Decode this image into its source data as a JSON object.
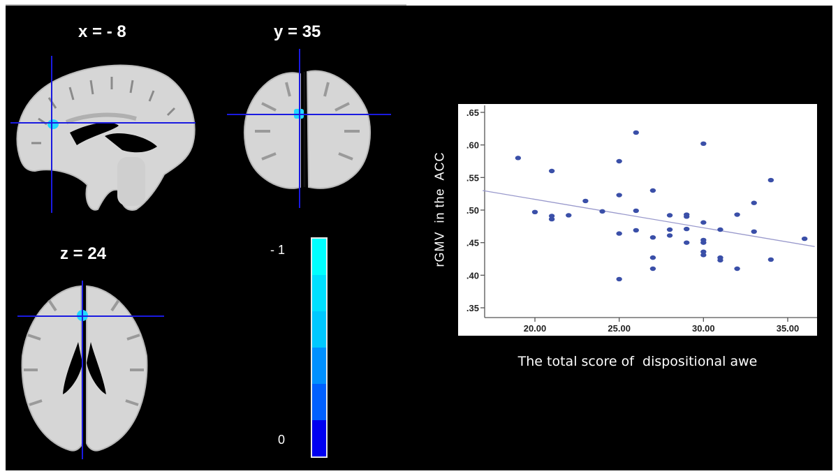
{
  "figure": {
    "panels": {
      "sagittal": {
        "label": "x = - 8"
      },
      "coronal": {
        "label": "y = 35"
      },
      "axial": {
        "label": "z = 24"
      }
    },
    "colorbar": {
      "top_label": "- 1",
      "bottom_label": "0",
      "colors": [
        "#00ffff",
        "#00e0ff",
        "#00c8ff",
        "#0090ff",
        "#0060ff",
        "#0000f0"
      ]
    },
    "colors": {
      "crosshair": "#1a1ae0",
      "cluster": "#22d8ff",
      "brain": "#d8d8d8",
      "point": "#3a4fa8",
      "fit_line": "#9999cc"
    }
  },
  "chart_data": {
    "type": "scatter",
    "title": "",
    "xlabel": "The total score of  dispositional awe",
    "ylabel": "rGMV  in the  ACC",
    "xlim": [
      16.9,
      36.6
    ],
    "ylim": [
      0.333,
      0.663
    ],
    "x_ticks": [
      20,
      25,
      30,
      35
    ],
    "x_tick_labels": [
      "20.00",
      "25.00",
      "30.00",
      "35.00"
    ],
    "y_ticks": [
      0.35,
      0.4,
      0.45,
      0.5,
      0.55,
      0.6,
      0.65
    ],
    "y_tick_labels": [
      ".35",
      ".40",
      ".45",
      ".50",
      ".55",
      ".60",
      ".65"
    ],
    "grid": false,
    "legend": null,
    "points": [
      [
        19,
        0.58
      ],
      [
        20,
        0.497
      ],
      [
        21,
        0.56
      ],
      [
        21,
        0.491
      ],
      [
        21,
        0.486
      ],
      [
        22,
        0.492
      ],
      [
        23,
        0.514
      ],
      [
        24,
        0.498
      ],
      [
        25,
        0.575
      ],
      [
        25,
        0.523
      ],
      [
        25,
        0.464
      ],
      [
        25,
        0.394
      ],
      [
        26,
        0.619
      ],
      [
        26,
        0.499
      ],
      [
        26,
        0.469
      ],
      [
        27,
        0.53
      ],
      [
        27,
        0.458
      ],
      [
        27,
        0.427
      ],
      [
        27,
        0.41
      ],
      [
        28,
        0.492
      ],
      [
        28,
        0.47
      ],
      [
        28,
        0.461
      ],
      [
        29,
        0.493
      ],
      [
        29,
        0.49
      ],
      [
        29,
        0.471
      ],
      [
        29,
        0.45
      ],
      [
        30,
        0.602
      ],
      [
        30,
        0.481
      ],
      [
        30,
        0.454
      ],
      [
        30,
        0.45
      ],
      [
        30,
        0.436
      ],
      [
        30,
        0.431
      ],
      [
        31,
        0.47
      ],
      [
        31,
        0.427
      ],
      [
        31,
        0.423
      ],
      [
        32,
        0.493
      ],
      [
        32,
        0.41
      ],
      [
        33,
        0.511
      ],
      [
        33,
        0.467
      ],
      [
        34,
        0.546
      ],
      [
        34,
        0.424
      ],
      [
        36,
        0.456
      ]
    ],
    "fit_line": {
      "x": [
        16.9,
        36.6
      ],
      "y": [
        0.53,
        0.444
      ]
    }
  }
}
